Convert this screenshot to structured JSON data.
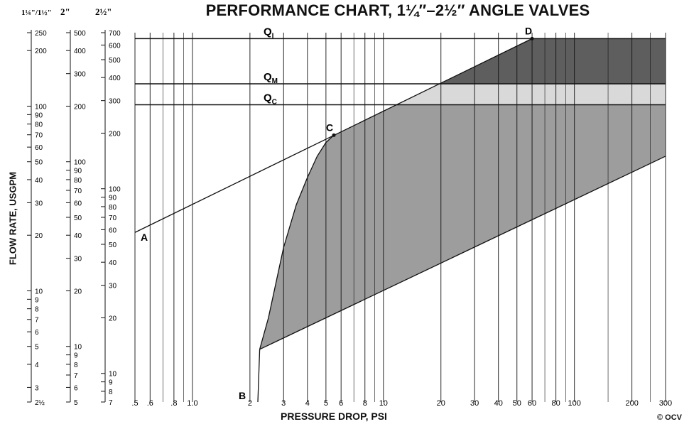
{
  "colors": {
    "shade_dark": "#5e5e5e",
    "shade_light": "#d9d9d9",
    "shade_mid": "#9d9d9d",
    "ink": "#111111"
  },
  "chart_data": {
    "type": "line",
    "title": "PERFORMANCE CHART, 1¼″–2½″ ANGLE VALVES",
    "xlabel": "PRESSURE DROP, PSI",
    "ylabel": "FLOW RATE, USGPM",
    "copyright": "© OCV",
    "x_scale": "log",
    "xlim": [
      0.5,
      300
    ],
    "x_ticks": [
      0.5,
      0.6,
      0.8,
      1.0,
      2,
      3,
      4,
      5,
      6,
      8,
      10,
      20,
      30,
      40,
      50,
      60,
      80,
      100,
      200,
      300
    ],
    "x_tick_labels": [
      ".5",
      ".6",
      ".8",
      "1.0",
      "2",
      "3",
      "4",
      "5",
      "6",
      "8",
      "10",
      "20",
      "30",
      "40",
      "50",
      "60",
      "80",
      "100",
      "200",
      "300"
    ],
    "flow_scales": [
      {
        "name": "1¼\"/1½\"",
        "ylim": [
          2.5,
          250
        ],
        "ticks": [
          2.5,
          3,
          4,
          5,
          6,
          7,
          8,
          9,
          10,
          20,
          30,
          40,
          50,
          60,
          70,
          80,
          90,
          100,
          200,
          250
        ],
        "labels": [
          "2½",
          "3",
          "4",
          "5",
          "6",
          "7",
          "8",
          "9",
          "10",
          "20",
          "30",
          "40",
          "50",
          "60",
          "70",
          "80",
          "90",
          "100",
          "200",
          "250"
        ]
      },
      {
        "name": "2\"",
        "ylim": [
          5,
          500
        ],
        "ticks": [
          5,
          6,
          7,
          8,
          9,
          10,
          20,
          30,
          40,
          50,
          60,
          70,
          80,
          90,
          100,
          200,
          300,
          400,
          500
        ],
        "labels": [
          "5",
          "6",
          "7",
          "8",
          "9",
          "10",
          "20",
          "30",
          "40",
          "50",
          "60",
          "70",
          "80",
          "90",
          "100",
          "200",
          "300",
          "400",
          "500"
        ]
      },
      {
        "name": "2½\"",
        "ylim": [
          7,
          700
        ],
        "ticks": [
          7,
          8,
          9,
          10,
          20,
          30,
          40,
          50,
          60,
          70,
          80,
          90,
          100,
          200,
          300,
          400,
          500,
          600,
          700
        ],
        "labels": [
          "7",
          "8",
          "9",
          "10",
          "20",
          "30",
          "40",
          "50",
          "60",
          "70",
          "80",
          "90",
          "100",
          "200",
          "300",
          "400",
          "500",
          "600",
          "700"
        ]
      }
    ],
    "ref_scale_ylim": [
      7,
      700
    ],
    "flow_lines": [
      {
        "label": "Q",
        "sub": "I",
        "y": 650
      },
      {
        "label": "Q",
        "sub": "M",
        "y": 370
      },
      {
        "label": "Q",
        "sub": "C",
        "y": 285
      }
    ],
    "points": [
      {
        "label": "A",
        "x": 0.5,
        "y": 58
      },
      {
        "label": "B",
        "x": 2.2,
        "y": 7
      },
      {
        "label": "C",
        "x": 5.5,
        "y": 195
      },
      {
        "label": "D",
        "x": 60,
        "y": 650
      }
    ],
    "series": [
      {
        "type": "line",
        "points": [
          [
            0.5,
            58
          ],
          [
            60,
            650
          ]
        ]
      },
      {
        "type": "line",
        "points": [
          [
            2.25,
            13.5
          ],
          [
            300,
            150
          ]
        ]
      },
      {
        "type": "curve",
        "points": [
          [
            2.2,
            7
          ],
          [
            2.25,
            13.5
          ],
          [
            2.5,
            20
          ],
          [
            3.0,
            48
          ],
          [
            3.5,
            82
          ],
          [
            4.0,
            115
          ],
          [
            4.5,
            150
          ],
          [
            5.0,
            178
          ],
          [
            5.5,
            195
          ]
        ]
      }
    ]
  }
}
